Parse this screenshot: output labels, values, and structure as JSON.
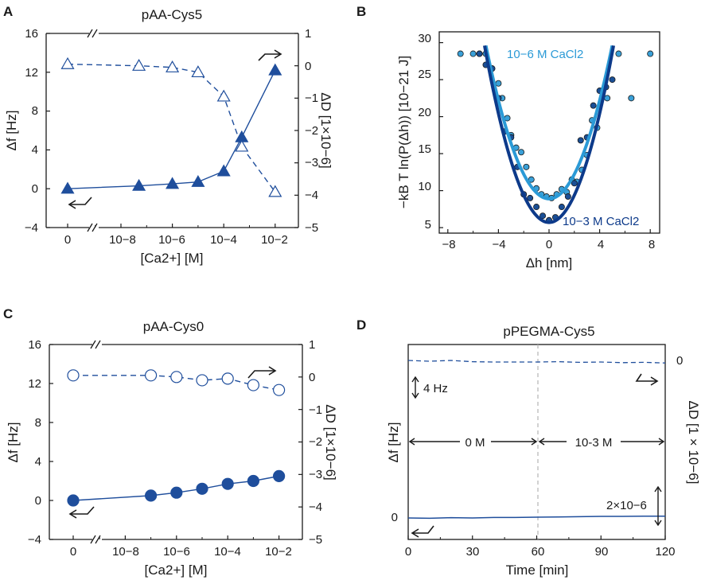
{
  "colors": {
    "dark_blue": "#1f4e9c",
    "navy": "#0d3a8a",
    "light_blue": "#2b9ad6",
    "point_light": "#3aa0d8",
    "point_dark": "#1a4f96",
    "axis": "#1a1a1a",
    "arrow": "#1a1a1a"
  },
  "panels": [
    {
      "letter": "A",
      "title": "pAA-Cys5",
      "xlabel": "[Ca2+] [M]",
      "ylabel_left": "Δf [Hz]",
      "ylabel_right": "ΔD [1×10−6]",
      "left_ticks": [
        "16",
        "12",
        "8",
        "4",
        "0",
        "−4"
      ],
      "right_ticks": [
        "1",
        "0",
        "−1",
        "−2",
        "−3",
        "−4",
        "−5"
      ],
      "x_ticks": [
        "0",
        "10−8",
        "10−6",
        "10−4",
        "10−2"
      ]
    },
    {
      "letter": "B",
      "title": "",
      "xlabel": "Δh [nm]",
      "ylabel": "−kB T ln(P(Δh)) [10−21 J]",
      "x_ticks": [
        "−8",
        "−4",
        "0",
        "4",
        "8"
      ],
      "y_ticks": [
        "30",
        "25",
        "20",
        "15",
        "10",
        "5"
      ],
      "label_high": "10−6 M CaCl2",
      "label_low": "10−3 M CaCl2"
    },
    {
      "letter": "C",
      "title": "pAA-Cys0",
      "xlabel": "[Ca2+] [M]",
      "ylabel_left": "Δf [Hz]",
      "ylabel_right": "ΔD [1×10−6]",
      "left_ticks": [
        "16",
        "12",
        "8",
        "4",
        "0",
        "−4"
      ],
      "right_ticks": [
        "1",
        "0",
        "−1",
        "−2",
        "−3",
        "−4",
        "−5"
      ],
      "x_ticks": [
        "0",
        "10−8",
        "10−6",
        "10−4",
        "10−2"
      ]
    },
    {
      "letter": "D",
      "title": "pPEGMA-Cys5",
      "xlabel": "Time [min]",
      "ylabel_left": "Δf [Hz]",
      "ylabel_right": "ΔD [1 × 10−6]",
      "x_ticks": [
        "0",
        "30",
        "60",
        "90",
        "120"
      ],
      "left_zero": "0",
      "right_zero": "0",
      "scale_f": "4 Hz",
      "scale_d": "2×10−6",
      "seg_left": "0 M",
      "seg_right": "10-3 M"
    }
  ],
  "chart_data": [
    {
      "panel": "A",
      "type": "line",
      "title": "pAA-Cys5",
      "xlabel": "[Ca2+] [M]",
      "ylabel": "Δf [Hz]",
      "ylabel_right": "ΔD [1×10−6]",
      "x_scale": "log10 with 0 on broken axis",
      "xlim": [
        -10,
        -1.5
      ],
      "ylim": [
        -4,
        16
      ],
      "ylim_right": [
        -5,
        1
      ],
      "series": [
        {
          "name": "Δf",
          "axis": "left",
          "marker": "filled-triangle",
          "line": "solid",
          "x": [
            0,
            -7.3,
            -6,
            -5,
            -4,
            -3.3,
            -2
          ],
          "values": [
            0,
            0.3,
            0.5,
            0.7,
            1.8,
            5.3,
            12.2
          ]
        },
        {
          "name": "ΔD",
          "axis": "right",
          "marker": "open-triangle",
          "line": "dashed",
          "x": [
            0,
            -7.3,
            -6,
            -5,
            -4,
            -3.3,
            -2
          ],
          "values": [
            0.05,
            0.0,
            -0.05,
            -0.2,
            -0.95,
            -2.5,
            -3.9
          ]
        }
      ]
    },
    {
      "panel": "B",
      "type": "scatter",
      "xlabel": "Δh [nm]",
      "ylabel": "−kB T ln(P(Δh)) [10−21 J]",
      "xlim": [
        -8.8,
        8.8
      ],
      "ylim": [
        3,
        31
      ],
      "series": [
        {
          "name": "10−6 M CaCl2",
          "fit": "parabola y = 8.9 + 0.83·x²",
          "x": [
            -7,
            -6,
            -5.5,
            -5,
            -4.5,
            -4,
            -3.7,
            -3.3,
            -3,
            -2.6,
            -2.2,
            -1.8,
            -1.4,
            -1,
            -0.6,
            -0.2,
            0.2,
            0.6,
            1,
            1.4,
            1.8,
            2.2,
            2.6,
            3,
            3.4,
            3.8,
            4.2,
            4.6,
            5.5,
            6.5,
            8
          ],
          "values": [
            28.5,
            28.5,
            28.5,
            28.5,
            26.5,
            24.5,
            22.5,
            19.8,
            17.5,
            15.8,
            15.2,
            13.2,
            11.5,
            10.3,
            9.5,
            9.2,
            9.0,
            9.5,
            10.2,
            9.8,
            11.5,
            11.2,
            12.8,
            14.8,
            19.5,
            18.5,
            23.5,
            22.5,
            28.5,
            22.5,
            28.5
          ]
        },
        {
          "name": "10−3 M CaCl2",
          "fit": "parabola y = 5.7 + 0.92·x²",
          "x": [
            -5.5,
            -5,
            -4.5,
            -4,
            -3.5,
            -3,
            -2.5,
            -2,
            -1.5,
            -1,
            -0.5,
            0,
            0.5,
            1,
            1.5,
            2,
            2.5,
            3,
            3.5,
            4,
            4.5,
            5
          ],
          "values": [
            28.5,
            27,
            26.5,
            22.5,
            18,
            17.2,
            13.2,
            9.5,
            9.0,
            7.8,
            6.6,
            6.0,
            6.4,
            7.8,
            9.2,
            11.0,
            16.8,
            17.2,
            21.5,
            23.5,
            24.0,
            25.0
          ]
        }
      ]
    },
    {
      "panel": "C",
      "type": "line",
      "title": "pAA-Cys0",
      "xlabel": "[Ca2+] [M]",
      "ylabel": "Δf [Hz]",
      "ylabel_right": "ΔD [1×10−6]",
      "x_scale": "log10 with 0 on broken axis",
      "xlim": [
        -10,
        -1.5
      ],
      "ylim": [
        -4,
        16
      ],
      "ylim_right": [
        -5,
        1
      ],
      "series": [
        {
          "name": "Δf",
          "axis": "left",
          "marker": "filled-circle",
          "line": "solid",
          "x": [
            0,
            -7,
            -6,
            -5,
            -4,
            -3,
            -2
          ],
          "values": [
            0,
            0.5,
            0.8,
            1.2,
            1.7,
            2.0,
            2.5
          ]
        },
        {
          "name": "ΔD",
          "axis": "right",
          "marker": "open-circle",
          "line": "dashed",
          "x": [
            0,
            -7,
            -6,
            -5,
            -4,
            -3,
            -2
          ],
          "values": [
            0.05,
            0.05,
            0.0,
            -0.1,
            -0.05,
            -0.25,
            -0.4
          ]
        }
      ]
    },
    {
      "panel": "D",
      "type": "line",
      "title": "pPEGMA-Cys5",
      "xlabel": "Time [min]",
      "ylabel": "Δf [Hz]",
      "ylabel_right": "ΔD [1 × 10−6]",
      "xlim": [
        0,
        120
      ],
      "event_time": 60,
      "series": [
        {
          "name": "ΔD",
          "axis": "right",
          "line": "dashed",
          "x": [
            0,
            10,
            20,
            30,
            40,
            50,
            60,
            70,
            80,
            90,
            100,
            110,
            120
          ],
          "values": [
            0.0,
            0.05,
            0.0,
            0.08,
            0.1,
            0.1,
            0.1,
            0.08,
            0.12,
            0.1,
            0.14,
            0.12,
            0.16
          ]
        },
        {
          "name": "Δf",
          "axis": "left",
          "line": "solid",
          "x": [
            0,
            10,
            20,
            30,
            40,
            50,
            60,
            70,
            80,
            90,
            100,
            110,
            120
          ],
          "values": [
            0.0,
            -0.05,
            0.05,
            0.0,
            0.1,
            0.1,
            0.15,
            0.2,
            0.25,
            0.3,
            0.3,
            0.35,
            0.35
          ]
        }
      ]
    }
  ]
}
